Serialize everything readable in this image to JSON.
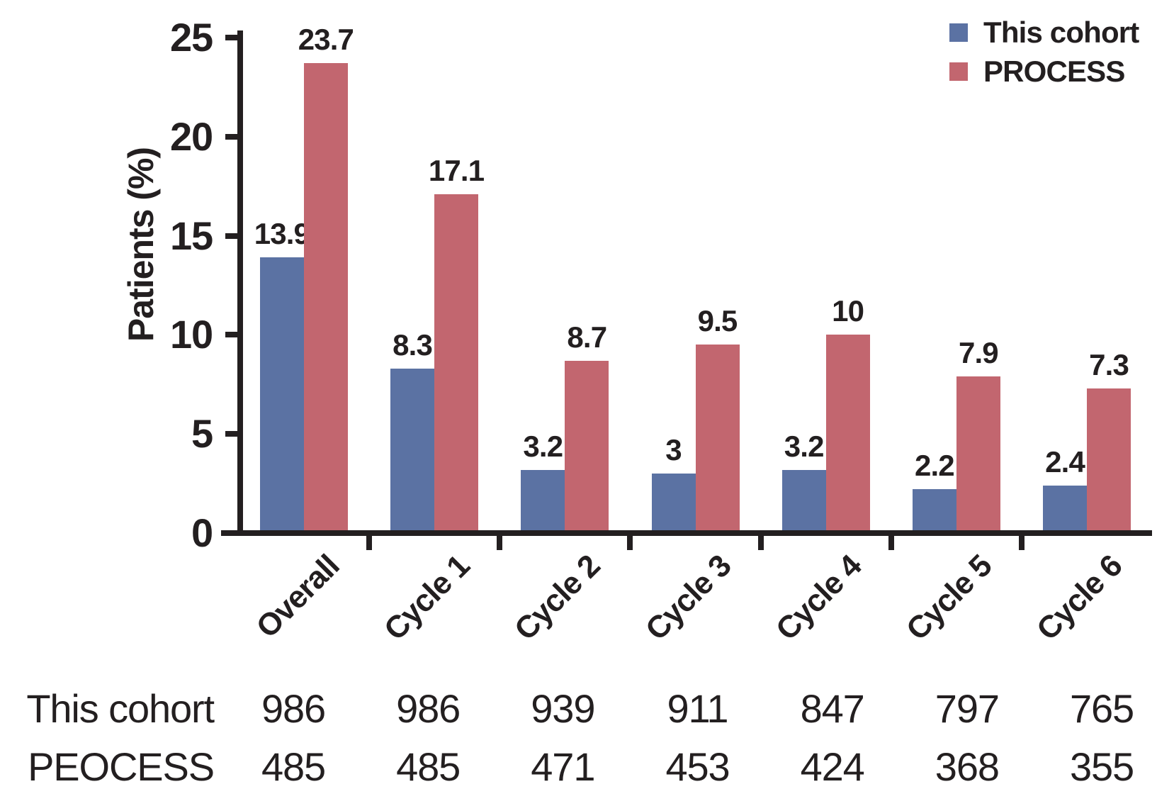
{
  "chart_data": {
    "type": "bar",
    "title": "",
    "ylabel": "Patients (%)",
    "xlabel": "",
    "ylim": [
      0,
      25
    ],
    "yticks": [
      0,
      5,
      10,
      15,
      20,
      25
    ],
    "grid": false,
    "legend_position": "top-right",
    "categories": [
      "Overall",
      "Cycle 1",
      "Cycle 2",
      "Cycle 3",
      "Cycle 4",
      "Cycle 5",
      "Cycle 6"
    ],
    "series": [
      {
        "name": "This cohort",
        "color": "#5b72a3",
        "values": [
          13.9,
          8.3,
          3.2,
          3,
          3.2,
          2.2,
          2.4
        ],
        "value_labels": [
          "13.9",
          "8.3",
          "3.2",
          "3",
          "3.2",
          "2.2",
          "2.4"
        ]
      },
      {
        "name": "PROCESS",
        "color": "#c2666f",
        "values": [
          23.7,
          17.1,
          8.7,
          9.5,
          10,
          7.9,
          7.3
        ],
        "value_labels": [
          "23.7",
          "17.1",
          "8.7",
          "9.5",
          "10",
          "7.9",
          "7.3"
        ]
      }
    ],
    "counts_table": {
      "rows": [
        {
          "label": "This cohort",
          "values": [
            986,
            986,
            939,
            911,
            847,
            797,
            765
          ]
        },
        {
          "label": "PEOCESS",
          "values": [
            485,
            485,
            471,
            453,
            424,
            368,
            355
          ]
        }
      ]
    },
    "axis_color": "#231f20",
    "text_color": "#231f20"
  }
}
